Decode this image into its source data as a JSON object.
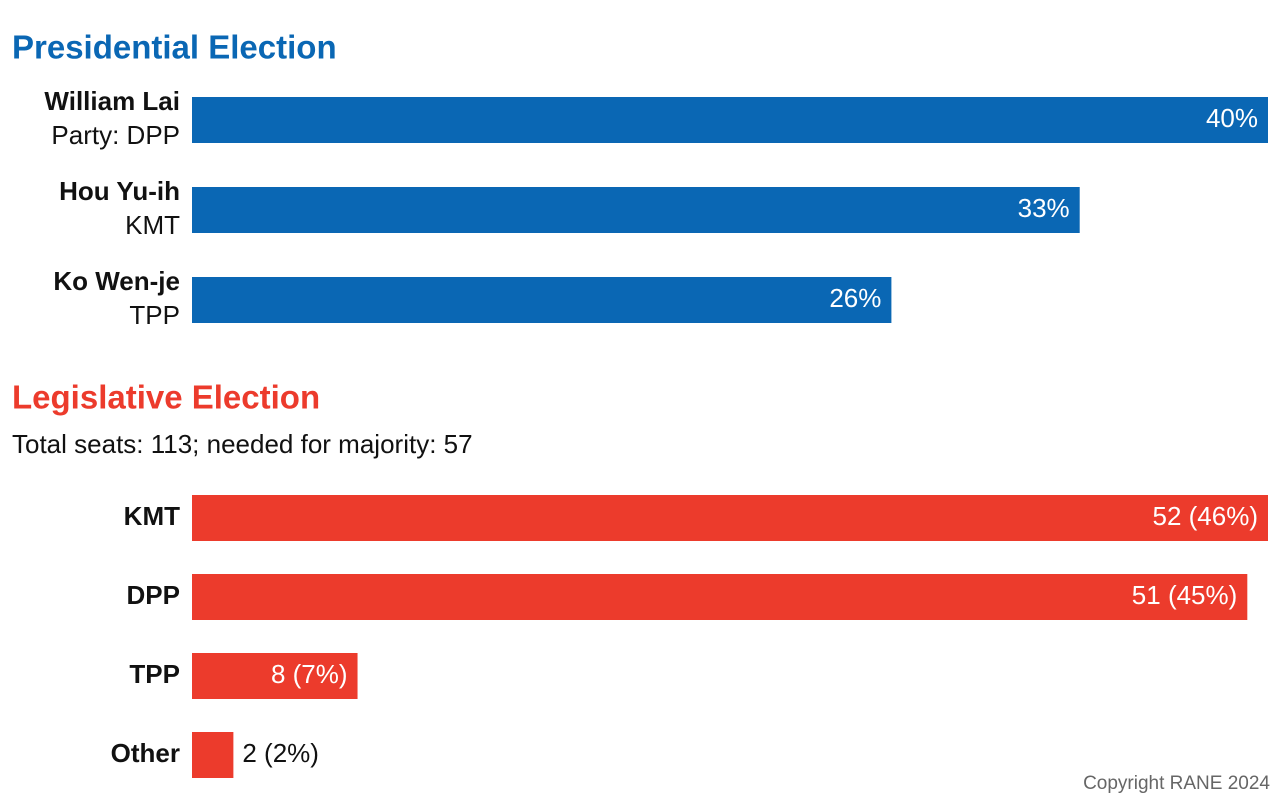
{
  "chart_data": [
    {
      "type": "hbar",
      "title": "Presidential Election",
      "categories": [
        "William Lai",
        "Hou Yu-ih",
        "Ko Wen-je"
      ],
      "category_subtitles": [
        "Party: DPP",
        "KMT",
        "TPP"
      ],
      "values": [
        40,
        33,
        26
      ],
      "value_labels": [
        "40%",
        "33%",
        "26%"
      ],
      "color": "#0a67b4",
      "xlim": [
        0,
        40
      ]
    },
    {
      "type": "hbar",
      "title": "Legislative Election",
      "subtitle": "Total seats: 113; needed for majority: 57",
      "categories": [
        "KMT",
        "DPP",
        "TPP",
        "Other"
      ],
      "values": [
        52,
        51,
        8,
        2
      ],
      "value_labels": [
        "52 (46%)",
        "51 (45%)",
        "8 (7%)",
        "2 (2%)"
      ],
      "color": "#ec3b2c",
      "xlim": [
        0,
        52
      ]
    }
  ],
  "copyright": "Copyright RANE 2024"
}
